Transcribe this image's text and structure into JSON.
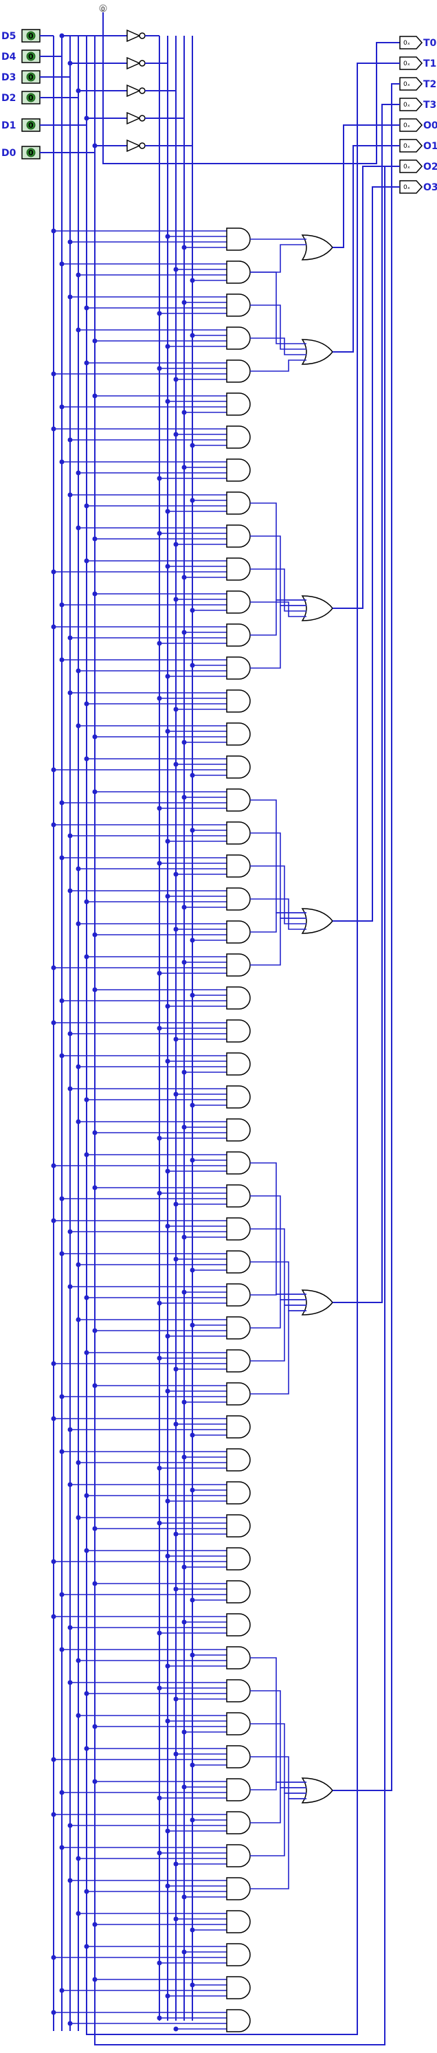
{
  "diagram": {
    "inputs": [
      "D5",
      "D4",
      "D3",
      "D2",
      "D1",
      "D0"
    ],
    "outputs": [
      "T0",
      "T1",
      "T2",
      "T3",
      "O0",
      "O1",
      "O2",
      "O3"
    ],
    "clock_label": "0",
    "pin_glyph": "0ₓ",
    "input_glyph": "0",
    "wire_color": "#2222cc",
    "gate_color": "#000000",
    "input_fill": "#cfe8cf"
  }
}
